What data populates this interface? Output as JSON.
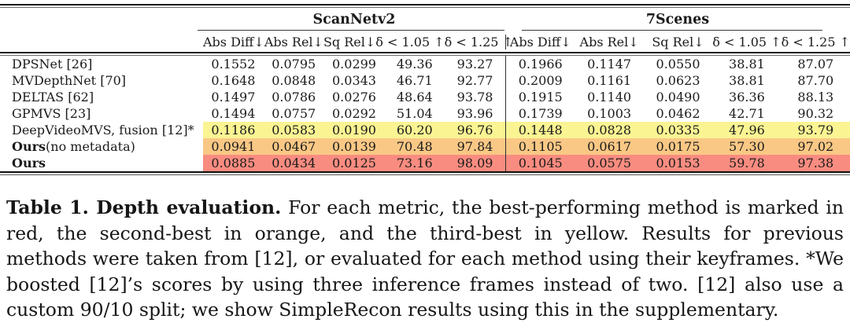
{
  "table": {
    "groups": [
      {
        "label": "ScanNetv2"
      },
      {
        "label": "7Scenes"
      }
    ],
    "metrics": [
      "Abs Diff↓",
      "Abs Rel↓",
      "Sq Rel↓",
      "δ < 1.05 ↑",
      "δ < 1.25 ↑"
    ],
    "rows": [
      {
        "method_bold": "",
        "method_rest": "DPSNet [26]",
        "highlight": "none",
        "scannetv2": [
          "0.1552",
          "0.0795",
          "0.0299",
          "49.36",
          "93.27"
        ],
        "sevenscenes": [
          "0.1966",
          "0.1147",
          "0.0550",
          "38.81",
          "87.07"
        ]
      },
      {
        "method_bold": "",
        "method_rest": "MVDepthNet [70]",
        "highlight": "none",
        "scannetv2": [
          "0.1648",
          "0.0848",
          "0.0343",
          "46.71",
          "92.77"
        ],
        "sevenscenes": [
          "0.2009",
          "0.1161",
          "0.0623",
          "38.81",
          "87.70"
        ]
      },
      {
        "method_bold": "",
        "method_rest": "DELTAS [62]",
        "highlight": "none",
        "scannetv2": [
          "0.1497",
          "0.0786",
          "0.0276",
          "48.64",
          "93.78"
        ],
        "sevenscenes": [
          "0.1915",
          "0.1140",
          "0.0490",
          "36.36",
          "88.13"
        ]
      },
      {
        "method_bold": "",
        "method_rest": "GPMVS [23]",
        "highlight": "none",
        "scannetv2": [
          "0.1494",
          "0.0757",
          "0.0292",
          "51.04",
          "93.96"
        ],
        "sevenscenes": [
          "0.1739",
          "0.1003",
          "0.0462",
          "42.71",
          "90.32"
        ]
      },
      {
        "method_bold": "",
        "method_rest": "DeepVideoMVS, fusion [12]*",
        "highlight": "yellow",
        "scannetv2": [
          "0.1186",
          "0.0583",
          "0.0190",
          "60.20",
          "96.76"
        ],
        "sevenscenes": [
          "0.1448",
          "0.0828",
          "0.0335",
          "47.96",
          "93.79"
        ]
      },
      {
        "method_bold": "Ours",
        "method_rest": " (no metadata)",
        "highlight": "orange",
        "scannetv2": [
          "0.0941",
          "0.0467",
          "0.0139",
          "70.48",
          "97.84"
        ],
        "sevenscenes": [
          "0.1105",
          "0.0617",
          "0.0175",
          "57.30",
          "97.02"
        ]
      },
      {
        "method_bold": "Ours",
        "method_rest": "",
        "highlight": "red",
        "scannetv2": [
          "0.0885",
          "0.0434",
          "0.0125",
          "73.16",
          "98.09"
        ],
        "sevenscenes": [
          "0.1045",
          "0.0575",
          "0.0153",
          "59.78",
          "97.38"
        ]
      }
    ]
  },
  "highlight_colors": {
    "yellow": "#FAF493",
    "orange": "#FAC885",
    "red": "#F98C80"
  },
  "caption": {
    "title": "Table 1. Depth evaluation.",
    "body": "For each metric, the best-performing method is marked in red, the second-best in orange, and the third-best in yellow. Results for previous methods were taken from [12], or evaluated for each method using their keyframes. *We boosted [12]’s scores by using three inference frames instead of two. [12] also use a custom 90/10 split; we show SimpleRecon results using this in the supplementary."
  }
}
